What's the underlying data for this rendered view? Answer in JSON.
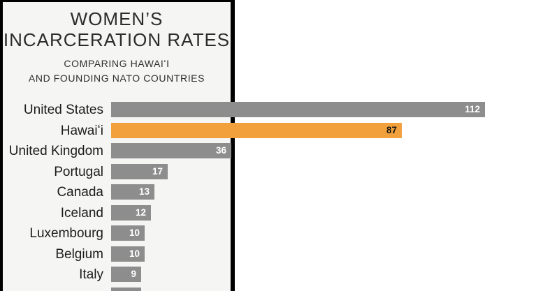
{
  "header": {
    "title_line1": "WOMEN’S",
    "title_line2": "INCARCERATION RATES",
    "subtitle_line1": "COMPARING HAWAIʻI",
    "subtitle_line2": "AND FOUNDING NATO COUNTRIES"
  },
  "colors": {
    "panel_background": "#f5f5f4",
    "frame_border": "#000000",
    "bar_gray": "#8d8d8d",
    "bar_highlight_orange": "#f2a03c",
    "value_text_light": "#ffffff",
    "value_text_dark": "#141414",
    "label_text": "#1c1c1c",
    "page_background": "#ffffff"
  },
  "chart_data": {
    "type": "bar",
    "orientation": "horizontal",
    "title": "WOMEN’S INCARCERATION RATES",
    "subtitle": "COMPARING HAWAIʻI AND FOUNDING NATO COUNTRIES",
    "value_label_position": "inside-right",
    "xlim": [
      0,
      112
    ],
    "rows": [
      {
        "label": "United States",
        "value": 112,
        "highlight": false,
        "partial": false
      },
      {
        "label": "Hawaiʻi",
        "value": 87,
        "highlight": true,
        "partial": false
      },
      {
        "label": "United Kingdom",
        "value": 36,
        "highlight": false,
        "partial": false
      },
      {
        "label": "Portugal",
        "value": 17,
        "highlight": false,
        "partial": false
      },
      {
        "label": "Canada",
        "value": 13,
        "highlight": false,
        "partial": false
      },
      {
        "label": "Iceland",
        "value": 12,
        "highlight": false,
        "partial": false
      },
      {
        "label": "Luxembourg",
        "value": 10,
        "highlight": false,
        "partial": false
      },
      {
        "label": "Belgium",
        "value": 10,
        "highlight": false,
        "partial": false
      },
      {
        "label": "Italy",
        "value": 9,
        "highlight": false,
        "partial": false
      },
      {
        "label": "",
        "value": 9,
        "highlight": false,
        "partial": true
      }
    ]
  }
}
